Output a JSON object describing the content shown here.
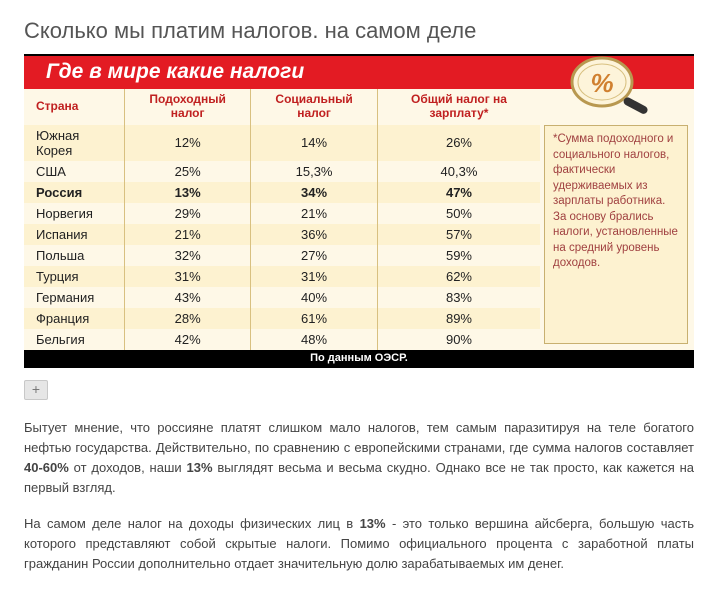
{
  "page_title": "Сколько мы платим налогов. на самом деле",
  "banner": "Где в мире какие налоги",
  "magnifier_label": "%",
  "columns": {
    "c0": "Страна",
    "c1": "Подоходный налог",
    "c2": "Социальный налог",
    "c3": "Общий налог на зарплату*"
  },
  "rows": [
    {
      "country": "Южная Корея",
      "income": "12%",
      "social": "14%",
      "total": "26%",
      "hl": false
    },
    {
      "country": "США",
      "income": "25%",
      "social": "15,3%",
      "total": "40,3%",
      "hl": false
    },
    {
      "country": "Россия",
      "income": "13%",
      "social": "34%",
      "total": "47%",
      "hl": true
    },
    {
      "country": "Норвегия",
      "income": "29%",
      "social": "21%",
      "total": "50%",
      "hl": false
    },
    {
      "country": "Испания",
      "income": "21%",
      "social": "36%",
      "total": "57%",
      "hl": false
    },
    {
      "country": "Польша",
      "income": "32%",
      "social": "27%",
      "total": "59%",
      "hl": false
    },
    {
      "country": "Турция",
      "income": "31%",
      "social": "31%",
      "total": "62%",
      "hl": false
    },
    {
      "country": "Германия",
      "income": "43%",
      "social": "40%",
      "total": "83%",
      "hl": false
    },
    {
      "country": "Франция",
      "income": "28%",
      "social": "61%",
      "total": "89%",
      "hl": false
    },
    {
      "country": "Бельгия",
      "income": "42%",
      "social": "48%",
      "total": "90%",
      "hl": false
    }
  ],
  "sidenote": "*Сумма подоходного и социального налогов, фактически удерживаемых из зарплаты работника. За основу брались налоги, установленные на средний уровень доходов.",
  "source": "По данным ОЭСР.",
  "zoom_label": "+",
  "para1_a": "Бытует мнение, что россияне платят слишком мало налогов, тем самым паразитируя на теле богатого нефтью государства. Действительно, по сравнению с европейскими странами, где сумма налогов составляет ",
  "para1_b": "40-60%",
  "para1_c": " от доходов, наши ",
  "para1_d": "13%",
  "para1_e": " выглядят весьма и весьма скудно. Однако все не так просто, как кажется на первый взгляд.",
  "para2_a": "На самом деле налог на доходы физических лиц в ",
  "para2_b": "13%",
  "para2_c": " - это только вершина айсберга, большую часть которого представляют собой скрытые налоги. Помимо официального процента с заработной платы гражданин России дополнительно отдает значительную долю зарабатываемых им денег.",
  "colors": {
    "banner_bg": "#e31b23",
    "header_text": "#c02020",
    "row_light": "#fef8e7",
    "row_dark": "#fdf2d0",
    "border": "#d8c080",
    "sidenote_text": "#a04040"
  }
}
